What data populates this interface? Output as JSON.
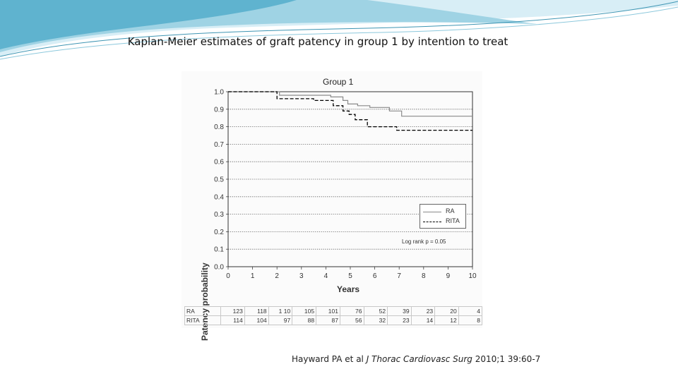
{
  "slide": {
    "title": "Kaplan-Meier estimates of graft patency in group 1 by intention to treat",
    "citation_prefix": "Hayward PA et al ",
    "citation_journal": "J Thorac Cardiovasc Surg",
    "citation_suffix": " 2010;1 39:60-7"
  },
  "colors": {
    "banner_light": "#d8eef6",
    "banner_mid": "#7cc3da",
    "banner_dark": "#4a9fbd",
    "ra_line": "#8a8a8a",
    "rita_line": "#000000"
  },
  "chart_data": {
    "type": "line",
    "title": "Group 1",
    "xlabel": "Years",
    "ylabel": "Patency probability",
    "xlim": [
      0,
      10
    ],
    "ylim": [
      0,
      1.0
    ],
    "x_ticks": [
      "0",
      "1",
      "2",
      "3",
      "4",
      "5",
      "6",
      "7",
      "8",
      "9",
      "10"
    ],
    "y_ticks": [
      "0.0",
      "0.1",
      "0.2",
      "0.3",
      "0.4",
      "0.5",
      "0.6",
      "0.7",
      "0.8",
      "0.9",
      "1.0"
    ],
    "grid": "horizontal dotted",
    "legend_position": "lower-right",
    "series": [
      {
        "name": "RA",
        "style": "solid",
        "points": [
          [
            0,
            1.0
          ],
          [
            2.1,
            1.0
          ],
          [
            2.1,
            0.98
          ],
          [
            4.2,
            0.98
          ],
          [
            4.2,
            0.97
          ],
          [
            4.7,
            0.97
          ],
          [
            4.7,
            0.95
          ],
          [
            4.9,
            0.95
          ],
          [
            4.9,
            0.93
          ],
          [
            5.3,
            0.93
          ],
          [
            5.3,
            0.92
          ],
          [
            5.8,
            0.92
          ],
          [
            5.8,
            0.91
          ],
          [
            6.6,
            0.91
          ],
          [
            6.6,
            0.89
          ],
          [
            7.1,
            0.89
          ],
          [
            7.1,
            0.86
          ],
          [
            10,
            0.86
          ]
        ]
      },
      {
        "name": "RITA",
        "style": "dashed",
        "points": [
          [
            0,
            1.0
          ],
          [
            2.0,
            1.0
          ],
          [
            2.0,
            0.96
          ],
          [
            3.5,
            0.96
          ],
          [
            3.5,
            0.95
          ],
          [
            4.3,
            0.95
          ],
          [
            4.3,
            0.92
          ],
          [
            4.7,
            0.92
          ],
          [
            4.7,
            0.89
          ],
          [
            4.95,
            0.89
          ],
          [
            4.95,
            0.87
          ],
          [
            5.2,
            0.87
          ],
          [
            5.2,
            0.84
          ],
          [
            5.7,
            0.84
          ],
          [
            5.7,
            0.8
          ],
          [
            6.9,
            0.8
          ],
          [
            6.9,
            0.78
          ],
          [
            10,
            0.78
          ]
        ]
      }
    ],
    "annotation": "Log rank p = 0.05",
    "risk_table": {
      "rows": [
        {
          "label": "RA",
          "values": [
            "123",
            "118",
            "1 10",
            "105",
            "101",
            "76",
            "52",
            "39",
            "23",
            "20",
            "4"
          ]
        },
        {
          "label": "RITA",
          "values": [
            "114",
            "104",
            "97",
            "88",
            "87",
            "56",
            "32",
            "23",
            "14",
            "12",
            "8"
          ]
        }
      ]
    }
  }
}
